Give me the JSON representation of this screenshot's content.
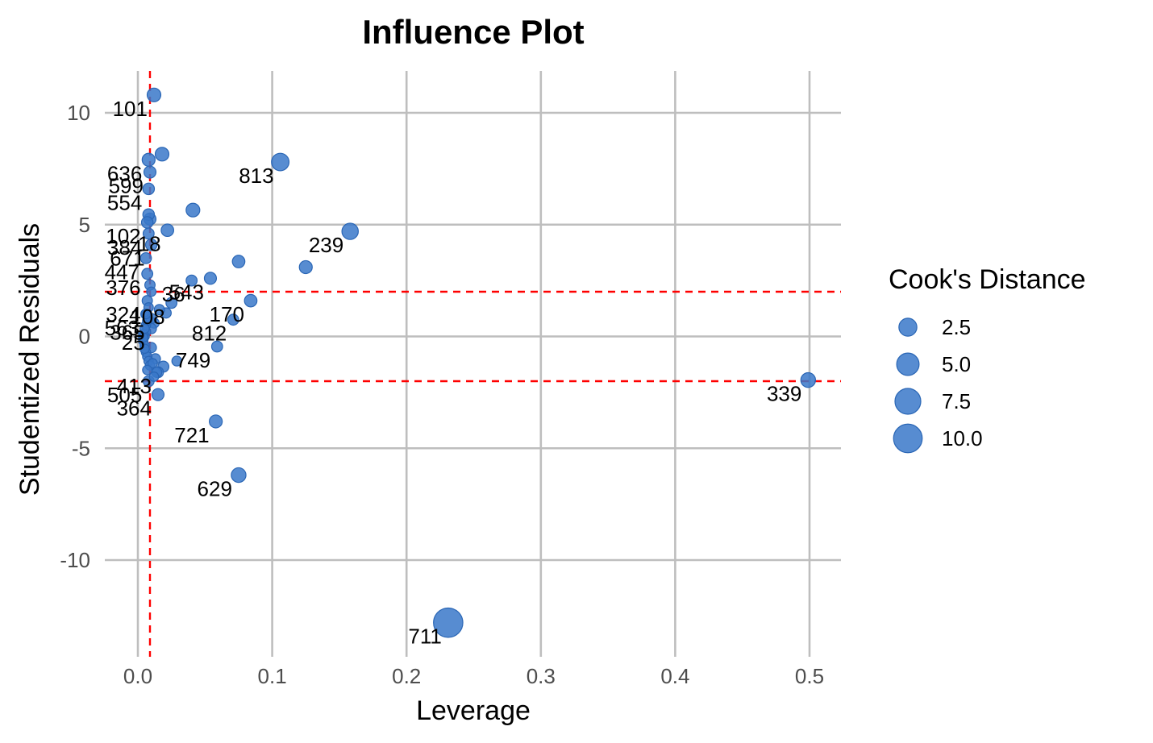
{
  "chart_data": {
    "type": "scatter",
    "title": "Influence Plot",
    "xlabel": "Leverage",
    "ylabel": "Studentized Residuals",
    "xlim": [
      -0.01,
      0.52
    ],
    "ylim": [
      -14,
      12
    ],
    "xticks": [
      "0.0",
      "0.1",
      "0.2",
      "0.3",
      "0.4",
      "0.5"
    ],
    "xtick_values": [
      0.0,
      0.1,
      0.2,
      0.3,
      0.4,
      0.5
    ],
    "yticks": [
      "10",
      "5",
      "0",
      "-5",
      "-10"
    ],
    "ytick_values": [
      10,
      5,
      0,
      -5,
      -10
    ],
    "grid": true,
    "reference_lines": {
      "x": [
        0.009
      ],
      "y": [
        2,
        -2
      ],
      "color": "#ff0000",
      "style": "dashed"
    },
    "point_color": "#3a78c9",
    "legend": {
      "title": "Cook's Distance",
      "placement": "right",
      "entries": [
        "2.5",
        "5.0",
        "7.5",
        "10.0"
      ],
      "entry_values": [
        2.5,
        5.0,
        7.5,
        10.0
      ]
    },
    "labeled_points": [
      {
        "label": "101",
        "x": 0.012,
        "y": 10.8,
        "cooks": 0.9
      },
      {
        "label": "813",
        "x": 0.106,
        "y": 7.8,
        "cooks": 2.3
      },
      {
        "label": "239",
        "x": 0.158,
        "y": 4.7,
        "cooks": 1.8
      },
      {
        "label": "18",
        "x": 0.022,
        "y": 4.75,
        "cooks": 0.6
      },
      {
        "label": "543",
        "x": 0.054,
        "y": 2.6,
        "cooks": 0.5
      },
      {
        "label": "170",
        "x": 0.084,
        "y": 1.6,
        "cooks": 0.6
      },
      {
        "label": "812",
        "x": 0.071,
        "y": 0.75,
        "cooks": 0.3
      },
      {
        "label": "749",
        "x": 0.059,
        "y": -0.45,
        "cooks": 0.3
      },
      {
        "label": "339",
        "x": 0.499,
        "y": -1.95,
        "cooks": 1.2
      },
      {
        "label": "364",
        "x": 0.015,
        "y": -2.6,
        "cooks": 0.5
      },
      {
        "label": "721",
        "x": 0.058,
        "y": -3.8,
        "cooks": 0.7
      },
      {
        "label": "629",
        "x": 0.075,
        "y": -6.2,
        "cooks": 1.2
      },
      {
        "label": "711",
        "x": 0.231,
        "y": -12.8,
        "cooks": 10.6
      },
      {
        "label": "636",
        "x": 0.008,
        "y": 7.9,
        "cooks": 0.7
      },
      {
        "label": "599",
        "x": 0.009,
        "y": 7.35,
        "cooks": 0.5
      },
      {
        "label": "554",
        "x": 0.008,
        "y": 6.6,
        "cooks": 0.4
      },
      {
        "label": "102",
        "x": 0.007,
        "y": 5.1,
        "cooks": 0.4
      },
      {
        "label": "384",
        "x": 0.008,
        "y": 4.6,
        "cooks": 0.3
      },
      {
        "label": "671",
        "x": 0.01,
        "y": 4.1,
        "cooks": 0.4
      },
      {
        "label": "447",
        "x": 0.006,
        "y": 3.5,
        "cooks": 0.3
      },
      {
        "label": "376",
        "x": 0.007,
        "y": 2.8,
        "cooks": 0.3
      },
      {
        "label": "108",
        "x": 0.025,
        "y": 1.5,
        "cooks": 0.3
      },
      {
        "label": "36",
        "x": 0.04,
        "y": 2.5,
        "cooks": 0.3
      },
      {
        "label": "324",
        "x": 0.007,
        "y": 1.6,
        "cooks": 0.2
      },
      {
        "label": "563",
        "x": 0.006,
        "y": 1.0,
        "cooks": 0.2
      },
      {
        "label": "365",
        "x": 0.01,
        "y": 0.8,
        "cooks": 0.2
      },
      {
        "label": "25",
        "x": 0.01,
        "y": 0.35,
        "cooks": 0.2
      },
      {
        "label": "413",
        "x": 0.015,
        "y": -1.6,
        "cooks": 0.3
      },
      {
        "label": "505",
        "x": 0.008,
        "y": -2.0,
        "cooks": 0.3
      }
    ],
    "other_points": [
      {
        "x": 0.018,
        "y": 8.15,
        "cooks": 0.9
      },
      {
        "x": 0.041,
        "y": 5.65,
        "cooks": 0.9
      },
      {
        "x": 0.075,
        "y": 3.35,
        "cooks": 0.6
      },
      {
        "x": 0.125,
        "y": 3.1,
        "cooks": 0.7
      },
      {
        "x": 0.008,
        "y": 5.45,
        "cooks": 0.4
      },
      {
        "x": 0.009,
        "y": 5.25,
        "cooks": 0.5
      },
      {
        "x": 0.009,
        "y": 2.3,
        "cooks": 0.2
      },
      {
        "x": 0.021,
        "y": 1.05,
        "cooks": 0.2
      },
      {
        "x": 0.016,
        "y": 1.2,
        "cooks": 0.2
      },
      {
        "x": 0.012,
        "y": 0.6,
        "cooks": 0.2
      },
      {
        "x": 0.01,
        "y": -0.5,
        "cooks": 0.2
      },
      {
        "x": 0.013,
        "y": -1.0,
        "cooks": 0.2
      },
      {
        "x": 0.029,
        "y": -1.1,
        "cooks": 0.15
      },
      {
        "x": 0.019,
        "y": -1.35,
        "cooks": 0.3
      },
      {
        "x": 0.014,
        "y": -1.6,
        "cooks": 0.2
      },
      {
        "x": 0.006,
        "y": 0.2,
        "cooks": 0.1
      },
      {
        "x": 0.005,
        "y": 0.0,
        "cooks": 0.1
      },
      {
        "x": 0.004,
        "y": -0.2,
        "cooks": 0.1
      },
      {
        "x": 0.004,
        "y": 0.1,
        "cooks": 0.1
      },
      {
        "x": 0.005,
        "y": -0.4,
        "cooks": 0.1
      },
      {
        "x": 0.006,
        "y": -0.7,
        "cooks": 0.1
      },
      {
        "x": 0.007,
        "y": -0.9,
        "cooks": 0.1
      },
      {
        "x": 0.008,
        "y": -1.1,
        "cooks": 0.1
      },
      {
        "x": 0.006,
        "y": 0.5,
        "cooks": 0.1
      },
      {
        "x": 0.007,
        "y": 0.7,
        "cooks": 0.1
      },
      {
        "x": 0.005,
        "y": -0.55,
        "cooks": 0.1
      },
      {
        "x": 0.004,
        "y": -0.05,
        "cooks": 0.1
      },
      {
        "x": 0.009,
        "y": -1.3,
        "cooks": 0.1
      },
      {
        "x": 0.011,
        "y": -1.2,
        "cooks": 0.1
      },
      {
        "x": 0.005,
        "y": 0.35,
        "cooks": 0.1
      },
      {
        "x": 0.008,
        "y": 1.3,
        "cooks": 0.1
      },
      {
        "x": 0.006,
        "y": 1.0,
        "cooks": 0.1
      },
      {
        "x": 0.01,
        "y": 2.0,
        "cooks": 0.1
      },
      {
        "x": 0.012,
        "y": -1.8,
        "cooks": 0.1
      },
      {
        "x": 0.007,
        "y": -1.5,
        "cooks": 0.1
      }
    ]
  }
}
